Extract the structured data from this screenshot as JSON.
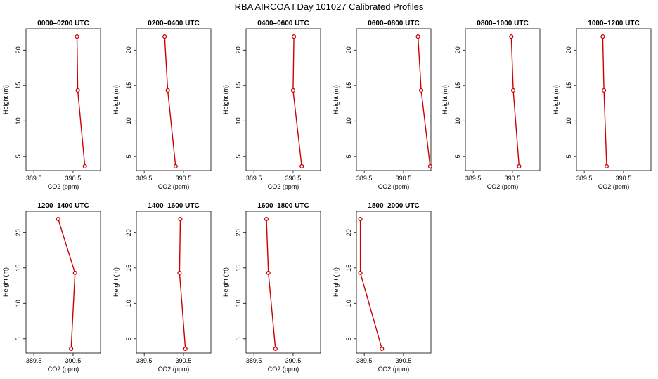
{
  "title": "RBA AIRCOA I  Day 101027  Calibrated Profiles",
  "colors": {
    "series": "#cc0000",
    "axis": "#000000"
  },
  "chart_data": [
    {
      "type": "line",
      "title": "0000–0200 UTC",
      "xlabel": "CO2 (ppm)",
      "ylabel": "Height (m)",
      "xlim": [
        389.3,
        391.2
      ],
      "ylim": [
        3,
        23
      ],
      "xticks": [
        "389.5",
        "390.5"
      ],
      "xtick_values": [
        389.5,
        390.5
      ],
      "yticks": [
        "5",
        "10",
        "15",
        "20"
      ],
      "ytick_values": [
        5,
        10,
        15,
        20
      ],
      "points": [
        {
          "x": 390.6,
          "y": 21.9
        },
        {
          "x": 390.62,
          "y": 14.3
        },
        {
          "x": 390.8,
          "y": 3.6
        }
      ]
    },
    {
      "type": "line",
      "title": "0200–0400 UTC",
      "xlabel": "CO2 (ppm)",
      "ylabel": "Height (m)",
      "xlim": [
        389.3,
        391.2
      ],
      "ylim": [
        3,
        23
      ],
      "xticks": [
        "389.5",
        "390.5"
      ],
      "xtick_values": [
        389.5,
        390.5
      ],
      "yticks": [
        "5",
        "10",
        "15",
        "20"
      ],
      "ytick_values": [
        5,
        10,
        15,
        20
      ],
      "points": [
        {
          "x": 390.02,
          "y": 21.9
        },
        {
          "x": 390.1,
          "y": 14.3
        },
        {
          "x": 390.3,
          "y": 3.6
        }
      ]
    },
    {
      "type": "line",
      "title": "0400–0600 UTC",
      "xlabel": "CO2 (ppm)",
      "ylabel": "Height (m)",
      "xlim": [
        389.3,
        391.2
      ],
      "ylim": [
        3,
        23
      ],
      "xticks": [
        "389.5",
        "390.5"
      ],
      "xtick_values": [
        389.5,
        390.5
      ],
      "yticks": [
        "5",
        "10",
        "15",
        "20"
      ],
      "ytick_values": [
        5,
        10,
        15,
        20
      ],
      "points": [
        {
          "x": 390.52,
          "y": 21.9
        },
        {
          "x": 390.5,
          "y": 14.3
        },
        {
          "x": 390.72,
          "y": 3.6
        }
      ]
    },
    {
      "type": "line",
      "title": "0600–0800 UTC",
      "xlabel": "CO2 (ppm)",
      "ylabel": "Height (m)",
      "xlim": [
        389.3,
        391.2
      ],
      "ylim": [
        3,
        23
      ],
      "xticks": [
        "389.5",
        "390.5"
      ],
      "xtick_values": [
        389.5,
        390.5
      ],
      "yticks": [
        "5",
        "10",
        "15",
        "20"
      ],
      "ytick_values": [
        5,
        10,
        15,
        20
      ],
      "points": [
        {
          "x": 390.87,
          "y": 21.9
        },
        {
          "x": 390.95,
          "y": 14.3
        },
        {
          "x": 391.18,
          "y": 3.6
        }
      ]
    },
    {
      "type": "line",
      "title": "0800–1000 UTC",
      "xlabel": "CO2 (ppm)",
      "ylabel": "Height (m)",
      "xlim": [
        389.3,
        391.2
      ],
      "ylim": [
        3,
        23
      ],
      "xticks": [
        "389.5",
        "390.5"
      ],
      "xtick_values": [
        389.5,
        390.5
      ],
      "yticks": [
        "5",
        "10",
        "15",
        "20"
      ],
      "ytick_values": [
        5,
        10,
        15,
        20
      ],
      "points": [
        {
          "x": 390.47,
          "y": 21.9
        },
        {
          "x": 390.52,
          "y": 14.3
        },
        {
          "x": 390.67,
          "y": 3.6
        }
      ]
    },
    {
      "type": "line",
      "title": "1000–1200 UTC",
      "xlabel": "CO2 (ppm)",
      "ylabel": "Height (m)",
      "xlim": [
        389.3,
        391.2
      ],
      "ylim": [
        3,
        23
      ],
      "xticks": [
        "389.5",
        "390.5"
      ],
      "xtick_values": [
        389.5,
        390.5
      ],
      "yticks": [
        "5",
        "10",
        "15",
        "20"
      ],
      "ytick_values": [
        5,
        10,
        15,
        20
      ],
      "points": [
        {
          "x": 389.97,
          "y": 21.9
        },
        {
          "x": 390.0,
          "y": 14.3
        },
        {
          "x": 390.07,
          "y": 3.6
        }
      ]
    },
    {
      "type": "line",
      "title": "1200–1400 UTC",
      "xlabel": "CO2 (ppm)",
      "ylabel": "Height (m)",
      "xlim": [
        389.3,
        391.2
      ],
      "ylim": [
        3,
        23
      ],
      "xticks": [
        "389.5",
        "390.5"
      ],
      "xtick_values": [
        389.5,
        390.5
      ],
      "yticks": [
        "5",
        "10",
        "15",
        "20"
      ],
      "ytick_values": [
        5,
        10,
        15,
        20
      ],
      "points": [
        {
          "x": 390.12,
          "y": 21.9
        },
        {
          "x": 390.55,
          "y": 14.3
        },
        {
          "x": 390.45,
          "y": 3.6
        }
      ]
    },
    {
      "type": "line",
      "title": "1400–1600 UTC",
      "xlabel": "CO2 (ppm)",
      "ylabel": "Height (m)",
      "xlim": [
        389.3,
        391.2
      ],
      "ylim": [
        3,
        23
      ],
      "xticks": [
        "389.5",
        "390.5"
      ],
      "xtick_values": [
        389.5,
        390.5
      ],
      "yticks": [
        "5",
        "10",
        "15",
        "20"
      ],
      "ytick_values": [
        5,
        10,
        15,
        20
      ],
      "points": [
        {
          "x": 390.42,
          "y": 21.9
        },
        {
          "x": 390.4,
          "y": 14.3
        },
        {
          "x": 390.55,
          "y": 3.6
        }
      ]
    },
    {
      "type": "line",
      "title": "1600–1800 UTC",
      "xlabel": "CO2 (ppm)",
      "ylabel": "Height (m)",
      "xlim": [
        389.3,
        391.2
      ],
      "ylim": [
        3,
        23
      ],
      "xticks": [
        "389.5",
        "390.5"
      ],
      "xtick_values": [
        389.5,
        390.5
      ],
      "yticks": [
        "5",
        "10",
        "15",
        "20"
      ],
      "ytick_values": [
        5,
        10,
        15,
        20
      ],
      "points": [
        {
          "x": 389.82,
          "y": 21.9
        },
        {
          "x": 389.87,
          "y": 14.3
        },
        {
          "x": 390.05,
          "y": 3.6
        }
      ]
    },
    {
      "type": "line",
      "title": "1800–2000 UTC",
      "xlabel": "CO2 (ppm)",
      "ylabel": "Height (m)",
      "xlim": [
        389.3,
        391.2
      ],
      "ylim": [
        3,
        23
      ],
      "xticks": [
        "389.5",
        "390.5"
      ],
      "xtick_values": [
        389.5,
        390.5
      ],
      "yticks": [
        "5",
        "10",
        "15",
        "20"
      ],
      "ytick_values": [
        5,
        10,
        15,
        20
      ],
      "points": [
        {
          "x": 389.4,
          "y": 21.9
        },
        {
          "x": 389.4,
          "y": 14.3
        },
        {
          "x": 389.95,
          "y": 3.6
        }
      ]
    }
  ]
}
